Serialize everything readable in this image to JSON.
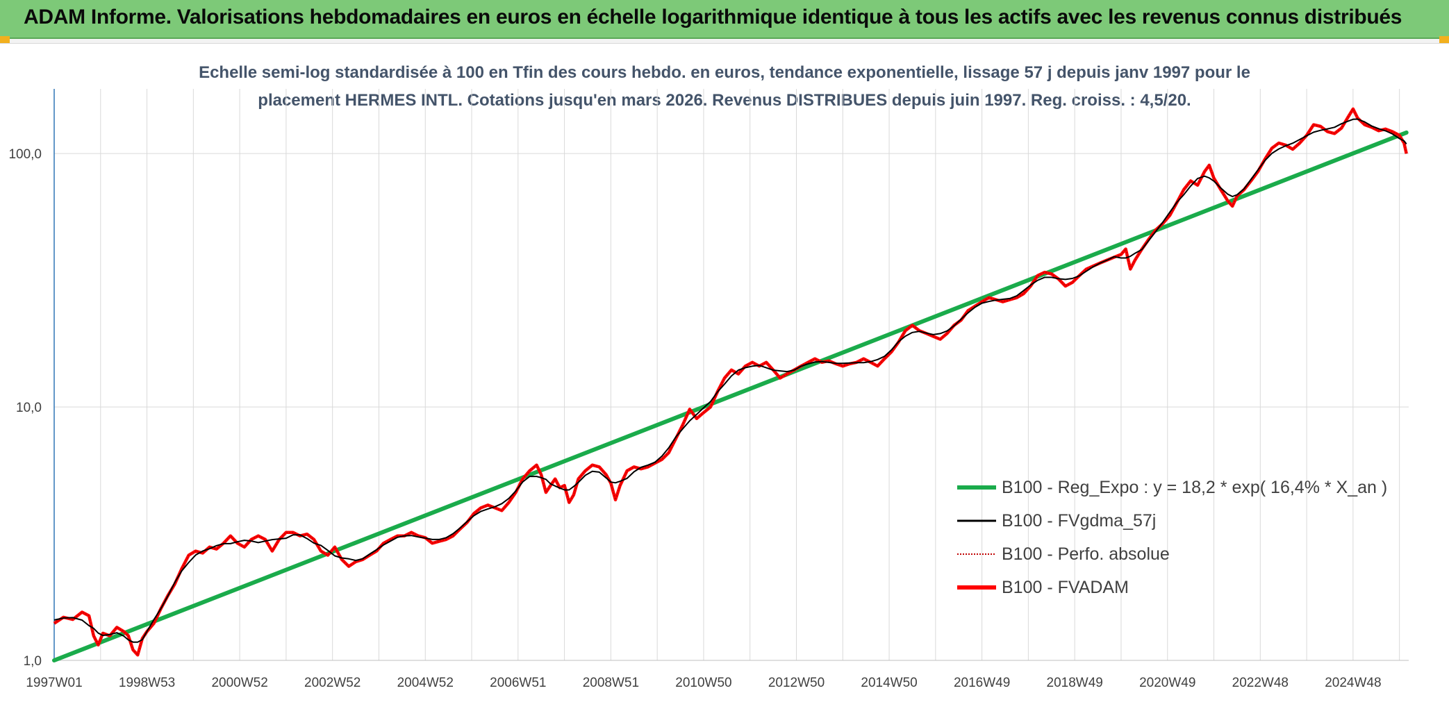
{
  "banner": {
    "title": "ADAM Informe. Valorisations hebdomadaires en euros en échelle logarithmique identique à tous les actifs avec les revenus connus distribués"
  },
  "colors": {
    "banner_bg": "#7dc978",
    "regression": "#1aab4b",
    "smoothed": "#000000",
    "absolute": "#c00000",
    "fvadam": "#ff0000",
    "title_text": "#44546a"
  },
  "chart_data": {
    "type": "line",
    "title_line1": "Echelle semi-log standardisée à 100 en Tfin des cours hebdo. en euros, tendance exponentielle, lissage 57 j depuis janv 1997 pour le",
    "title_line2": "placement HERMES INTL. Cotations jusqu'en mars 2026. Revenus DISTRIBUES depuis juin 1997. Reg. croiss. : 4,5/20.",
    "y_scale": "log",
    "ylim": [
      1,
      180
    ],
    "y_ticks": [
      {
        "value": 1,
        "label": "1,0"
      },
      {
        "value": 10,
        "label": "10,0"
      },
      {
        "value": 100,
        "label": "100,0"
      }
    ],
    "x_range": [
      1997.0,
      2026.2
    ],
    "x_ticks": [
      {
        "value": 1997.0,
        "label": "1997W01"
      },
      {
        "value": 1998.0,
        "label": ""
      },
      {
        "value": 1999.0,
        "label": "1998W53"
      },
      {
        "value": 2000.0,
        "label": ""
      },
      {
        "value": 2001.0,
        "label": "2000W52"
      },
      {
        "value": 2002.0,
        "label": ""
      },
      {
        "value": 2003.0,
        "label": "2002W52"
      },
      {
        "value": 2004.0,
        "label": ""
      },
      {
        "value": 2005.0,
        "label": "2004W52"
      },
      {
        "value": 2006.0,
        "label": ""
      },
      {
        "value": 2007.0,
        "label": "2006W51"
      },
      {
        "value": 2008.0,
        "label": ""
      },
      {
        "value": 2009.0,
        "label": "2008W51"
      },
      {
        "value": 2010.0,
        "label": ""
      },
      {
        "value": 2011.0,
        "label": "2010W50"
      },
      {
        "value": 2012.0,
        "label": ""
      },
      {
        "value": 2013.0,
        "label": "2012W50"
      },
      {
        "value": 2014.0,
        "label": ""
      },
      {
        "value": 2015.0,
        "label": "2014W50"
      },
      {
        "value": 2016.0,
        "label": ""
      },
      {
        "value": 2017.0,
        "label": "2016W49"
      },
      {
        "value": 2018.0,
        "label": ""
      },
      {
        "value": 2019.0,
        "label": "2018W49"
      },
      {
        "value": 2020.0,
        "label": ""
      },
      {
        "value": 2021.0,
        "label": "2020W49"
      },
      {
        "value": 2022.0,
        "label": ""
      },
      {
        "value": 2023.0,
        "label": "2022W48"
      },
      {
        "value": 2024.0,
        "label": ""
      },
      {
        "value": 2025.0,
        "label": "2024W48"
      },
      {
        "value": 2026.0,
        "label": ""
      }
    ],
    "grid": true,
    "legend_position": "lower-right",
    "series": [
      {
        "name": "B100 - Reg_Expo : y = 18,2 * exp( 16,4% *  X_an )",
        "color": "#1aab4b",
        "style": "solid-thick",
        "points": [
          [
            1997.0,
            1.0
          ],
          [
            2026.15,
            121.0
          ]
        ]
      },
      {
        "name": "B100 - FVgdma_57j",
        "color": "#000000",
        "style": "solid-thin",
        "points": []
      },
      {
        "name": "B100 - Perfo. absolue",
        "color": "#c00000",
        "style": "dotted",
        "points": []
      },
      {
        "name": "B100 - FVADAM",
        "color": "#ff0000",
        "style": "solid-thick",
        "points": [
          [
            1997.0,
            1.4
          ],
          [
            1997.2,
            1.48
          ],
          [
            1997.4,
            1.45
          ],
          [
            1997.6,
            1.55
          ],
          [
            1997.75,
            1.5
          ],
          [
            1997.85,
            1.25
          ],
          [
            1997.95,
            1.15
          ],
          [
            1998.05,
            1.28
          ],
          [
            1998.2,
            1.25
          ],
          [
            1998.35,
            1.35
          ],
          [
            1998.5,
            1.3
          ],
          [
            1998.6,
            1.25
          ],
          [
            1998.7,
            1.1
          ],
          [
            1998.8,
            1.05
          ],
          [
            1998.9,
            1.22
          ],
          [
            1999.0,
            1.3
          ],
          [
            1999.15,
            1.4
          ],
          [
            1999.3,
            1.6
          ],
          [
            1999.45,
            1.8
          ],
          [
            1999.6,
            2.0
          ],
          [
            1999.75,
            2.3
          ],
          [
            1999.9,
            2.6
          ],
          [
            2000.05,
            2.7
          ],
          [
            2000.2,
            2.65
          ],
          [
            2000.35,
            2.8
          ],
          [
            2000.5,
            2.75
          ],
          [
            2000.65,
            2.9
          ],
          [
            2000.8,
            3.1
          ],
          [
            2000.95,
            2.9
          ],
          [
            2001.1,
            2.8
          ],
          [
            2001.25,
            3.0
          ],
          [
            2001.4,
            3.1
          ],
          [
            2001.55,
            3.0
          ],
          [
            2001.7,
            2.7
          ],
          [
            2001.85,
            3.0
          ],
          [
            2002.0,
            3.2
          ],
          [
            2002.15,
            3.2
          ],
          [
            2002.3,
            3.1
          ],
          [
            2002.45,
            3.15
          ],
          [
            2002.6,
            3.0
          ],
          [
            2002.75,
            2.7
          ],
          [
            2002.9,
            2.6
          ],
          [
            2003.05,
            2.8
          ],
          [
            2003.2,
            2.5
          ],
          [
            2003.35,
            2.35
          ],
          [
            2003.5,
            2.45
          ],
          [
            2003.65,
            2.5
          ],
          [
            2003.8,
            2.6
          ],
          [
            2003.95,
            2.7
          ],
          [
            2004.1,
            2.9
          ],
          [
            2004.25,
            3.0
          ],
          [
            2004.4,
            3.1
          ],
          [
            2004.55,
            3.1
          ],
          [
            2004.7,
            3.2
          ],
          [
            2004.85,
            3.1
          ],
          [
            2005.0,
            3.05
          ],
          [
            2005.15,
            2.9
          ],
          [
            2005.3,
            2.95
          ],
          [
            2005.45,
            3.0
          ],
          [
            2005.6,
            3.1
          ],
          [
            2005.75,
            3.3
          ],
          [
            2005.9,
            3.5
          ],
          [
            2006.05,
            3.8
          ],
          [
            2006.2,
            4.0
          ],
          [
            2006.35,
            4.1
          ],
          [
            2006.5,
            4.0
          ],
          [
            2006.65,
            3.9
          ],
          [
            2006.8,
            4.2
          ],
          [
            2006.95,
            4.6
          ],
          [
            2007.1,
            5.2
          ],
          [
            2007.25,
            5.6
          ],
          [
            2007.4,
            5.9
          ],
          [
            2007.5,
            5.4
          ],
          [
            2007.6,
            4.6
          ],
          [
            2007.7,
            4.9
          ],
          [
            2007.8,
            5.2
          ],
          [
            2007.9,
            4.8
          ],
          [
            2008.0,
            4.9
          ],
          [
            2008.1,
            4.2
          ],
          [
            2008.2,
            4.5
          ],
          [
            2008.3,
            5.2
          ],
          [
            2008.45,
            5.6
          ],
          [
            2008.6,
            5.9
          ],
          [
            2008.75,
            5.8
          ],
          [
            2008.9,
            5.4
          ],
          [
            2009.0,
            5.0
          ],
          [
            2009.1,
            4.3
          ],
          [
            2009.2,
            4.9
          ],
          [
            2009.35,
            5.6
          ],
          [
            2009.5,
            5.8
          ],
          [
            2009.65,
            5.7
          ],
          [
            2009.8,
            5.8
          ],
          [
            2009.95,
            6.0
          ],
          [
            2010.1,
            6.2
          ],
          [
            2010.25,
            6.6
          ],
          [
            2010.4,
            7.5
          ],
          [
            2010.55,
            8.5
          ],
          [
            2010.7,
            9.8
          ],
          [
            2010.85,
            9.0
          ],
          [
            2011.0,
            9.5
          ],
          [
            2011.15,
            10.0
          ],
          [
            2011.3,
            11.5
          ],
          [
            2011.45,
            13.0
          ],
          [
            2011.6,
            14.0
          ],
          [
            2011.75,
            13.5
          ],
          [
            2011.9,
            14.5
          ],
          [
            2012.05,
            15.0
          ],
          [
            2012.2,
            14.5
          ],
          [
            2012.35,
            15.0
          ],
          [
            2012.5,
            14.0
          ],
          [
            2012.65,
            13.0
          ],
          [
            2012.8,
            13.5
          ],
          [
            2012.95,
            14.0
          ],
          [
            2013.1,
            14.5
          ],
          [
            2013.25,
            15.0
          ],
          [
            2013.4,
            15.5
          ],
          [
            2013.55,
            15.0
          ],
          [
            2013.7,
            15.2
          ],
          [
            2013.85,
            14.8
          ],
          [
            2014.0,
            14.5
          ],
          [
            2014.15,
            14.8
          ],
          [
            2014.3,
            15.0
          ],
          [
            2014.45,
            15.5
          ],
          [
            2014.6,
            15.0
          ],
          [
            2014.75,
            14.5
          ],
          [
            2014.9,
            15.5
          ],
          [
            2015.05,
            16.5
          ],
          [
            2015.2,
            18.0
          ],
          [
            2015.35,
            20.0
          ],
          [
            2015.5,
            21.0
          ],
          [
            2015.65,
            20.0
          ],
          [
            2015.8,
            19.5
          ],
          [
            2015.95,
            19.0
          ],
          [
            2016.1,
            18.5
          ],
          [
            2016.25,
            19.5
          ],
          [
            2016.4,
            21.0
          ],
          [
            2016.55,
            22.0
          ],
          [
            2016.7,
            24.0
          ],
          [
            2016.85,
            25.0
          ],
          [
            2017.0,
            26.0
          ],
          [
            2017.15,
            27.0
          ],
          [
            2017.3,
            26.5
          ],
          [
            2017.45,
            26.0
          ],
          [
            2017.6,
            26.5
          ],
          [
            2017.75,
            27.0
          ],
          [
            2017.9,
            28.0
          ],
          [
            2018.05,
            30.0
          ],
          [
            2018.2,
            33.0
          ],
          [
            2018.35,
            34.0
          ],
          [
            2018.5,
            33.5
          ],
          [
            2018.65,
            32.0
          ],
          [
            2018.8,
            30.0
          ],
          [
            2018.95,
            31.0
          ],
          [
            2019.1,
            33.0
          ],
          [
            2019.25,
            35.0
          ],
          [
            2019.4,
            36.0
          ],
          [
            2019.55,
            37.0
          ],
          [
            2019.7,
            38.0
          ],
          [
            2019.85,
            39.0
          ],
          [
            2020.0,
            40.0
          ],
          [
            2020.1,
            42.0
          ],
          [
            2020.2,
            35.0
          ],
          [
            2020.3,
            38.0
          ],
          [
            2020.45,
            42.0
          ],
          [
            2020.6,
            46.0
          ],
          [
            2020.75,
            50.0
          ],
          [
            2020.9,
            53.0
          ],
          [
            2021.05,
            57.0
          ],
          [
            2021.2,
            64.0
          ],
          [
            2021.35,
            72.0
          ],
          [
            2021.5,
            78.0
          ],
          [
            2021.65,
            75.0
          ],
          [
            2021.8,
            85.0
          ],
          [
            2021.9,
            90.0
          ],
          [
            2022.0,
            80.0
          ],
          [
            2022.15,
            72.0
          ],
          [
            2022.3,
            65.0
          ],
          [
            2022.4,
            62.0
          ],
          [
            2022.5,
            68.0
          ],
          [
            2022.65,
            72.0
          ],
          [
            2022.8,
            78.0
          ],
          [
            2022.95,
            85.0
          ],
          [
            2023.1,
            95.0
          ],
          [
            2023.25,
            105.0
          ],
          [
            2023.4,
            110.0
          ],
          [
            2023.55,
            108.0
          ],
          [
            2023.7,
            104.0
          ],
          [
            2023.85,
            110.0
          ],
          [
            2024.0,
            118.0
          ],
          [
            2024.15,
            130.0
          ],
          [
            2024.3,
            128.0
          ],
          [
            2024.45,
            122.0
          ],
          [
            2024.6,
            120.0
          ],
          [
            2024.75,
            126.0
          ],
          [
            2024.9,
            140.0
          ],
          [
            2025.0,
            150.0
          ],
          [
            2025.1,
            138.0
          ],
          [
            2025.25,
            130.0
          ],
          [
            2025.4,
            127.0
          ],
          [
            2025.55,
            123.0
          ],
          [
            2025.7,
            125.0
          ],
          [
            2025.85,
            122.0
          ],
          [
            2026.0,
            118.0
          ],
          [
            2026.1,
            110.0
          ],
          [
            2026.15,
            100.0
          ]
        ]
      }
    ]
  }
}
